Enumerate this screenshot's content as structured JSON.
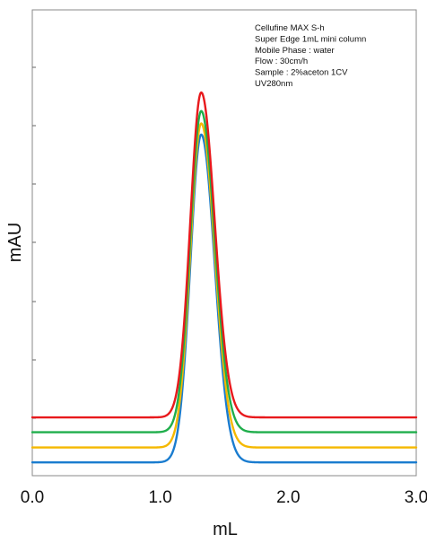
{
  "chart_data": {
    "type": "line",
    "xlabel": "mL",
    "ylabel": "mAU",
    "xlim": [
      0.0,
      3.0
    ],
    "ylim": [
      0,
      100
    ],
    "x_ticks": [
      "0.0",
      "1.0",
      "2.0",
      "3.0"
    ],
    "grid": false,
    "legend": "none",
    "annotations": [
      "Cellufine MAX S-h",
      "Super Edge 1mL mini column",
      "Mobile Phase : water",
      "Flow : 30cm/h",
      "Sample : 2%aceton  1CV",
      "UV280nm"
    ],
    "peak_center": 1.32,
    "series": [
      {
        "color": "#e8191c",
        "baseline": 11.3,
        "peak": 90.0
      },
      {
        "color": "#1fae4b",
        "baseline": 7.7,
        "peak": 85.5
      },
      {
        "color": "#f5b800",
        "baseline": 4.0,
        "peak": 82.5
      },
      {
        "color": "#1a7ccf",
        "baseline": 0.4,
        "peak": 79.8
      }
    ]
  }
}
